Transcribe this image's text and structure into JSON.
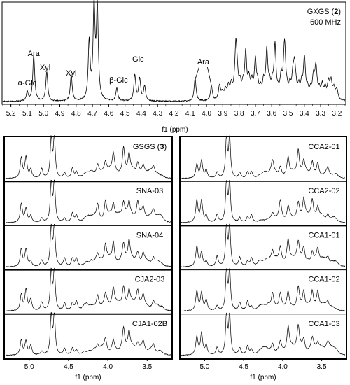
{
  "chart_data": [
    {
      "type": "line",
      "id": "main",
      "x_axis_label": "f1 (ppm)",
      "xlim": [
        5.25,
        3.15
      ],
      "x_reversed": true,
      "x_ticks": [
        "5.2",
        "5.1",
        "5.0",
        "4.9",
        "4.8",
        "4.7",
        "4.6",
        "4.5",
        "4.4",
        "4.3",
        "4.2",
        "4.1",
        "4.0",
        "3.9",
        "3.8",
        "3.7",
        "3.6",
        "3.5",
        "3.4",
        "3.3",
        "3.2"
      ],
      "sample_label_text": "GXGS (",
      "sample_label_bold": "2",
      "sample_label_close": ")",
      "field_label": "600 MHz",
      "peak_labels": [
        {
          "text": "α-Glc",
          "ppm": 5.1
        },
        {
          "text": "Ara",
          "ppm": 5.06
        },
        {
          "text": "Xyl",
          "ppm": 4.99
        },
        {
          "text": "Xyl",
          "ppm": 4.83
        },
        {
          "text": "β-Glc",
          "ppm": 4.54
        },
        {
          "text": "Glc",
          "ppm": 4.42
        },
        {
          "text": "Ara",
          "ppm": 4.02
        }
      ],
      "peaks": [
        {
          "ppm": 5.1,
          "h": 0.1
        },
        {
          "ppm": 5.06,
          "h": 0.5
        },
        {
          "ppm": 4.98,
          "h": 0.32
        },
        {
          "ppm": 4.83,
          "h": 0.28
        },
        {
          "ppm": 4.72,
          "h": 0.62
        },
        {
          "ppm": 4.69,
          "h": 1.0
        },
        {
          "ppm": 4.67,
          "h": 0.98
        },
        {
          "ppm": 4.55,
          "h": 0.14
        },
        {
          "ppm": 4.44,
          "h": 0.28
        },
        {
          "ppm": 4.41,
          "h": 0.24
        },
        {
          "ppm": 4.38,
          "h": 0.16
        },
        {
          "ppm": 4.07,
          "h": 0.25
        },
        {
          "ppm": 3.97,
          "h": 0.16
        },
        {
          "ppm": 3.82,
          "h": 0.5
        },
        {
          "ppm": 3.76,
          "h": 0.38
        },
        {
          "ppm": 3.7,
          "h": 0.34
        },
        {
          "ppm": 3.63,
          "h": 0.42
        },
        {
          "ppm": 3.58,
          "h": 0.48
        },
        {
          "ppm": 3.52,
          "h": 0.4
        },
        {
          "ppm": 3.46,
          "h": 0.3
        },
        {
          "ppm": 3.4,
          "h": 0.26
        },
        {
          "ppm": 3.33,
          "h": 0.22
        },
        {
          "ppm": 3.25,
          "h": 0.1
        }
      ]
    },
    {
      "type": "line",
      "id": "left-stack",
      "x_axis_label": "f1 (ppm)",
      "xlim": [
        5.3,
        3.2
      ],
      "x_ticks": [
        "5.0",
        "4.5",
        "4.0",
        "3.5"
      ],
      "panels": [
        {
          "name_text": "GSGS (",
          "name_bold": "3",
          "name_close": ")",
          "variant": 1
        },
        {
          "name_text": "SNA-03",
          "name_bold": "",
          "name_close": "",
          "variant": 2
        },
        {
          "name_text": "SNA-04",
          "name_bold": "",
          "name_close": "",
          "variant": 3
        },
        {
          "name_text": "CJA2-03",
          "name_bold": "",
          "name_close": "",
          "variant": 4
        },
        {
          "name_text": "CJA1-02B",
          "name_bold": "",
          "name_close": "",
          "variant": 5
        }
      ]
    },
    {
      "type": "line",
      "id": "right-stack",
      "x_axis_label": "f1 (ppm)",
      "xlim": [
        5.3,
        3.2
      ],
      "x_ticks": [
        "5.0",
        "4.5",
        "4.0",
        "3.5"
      ],
      "panels": [
        {
          "name_text": "CCA2-01",
          "name_bold": "",
          "name_close": "",
          "variant": 6
        },
        {
          "name_text": "CCA2-02",
          "name_bold": "",
          "name_close": "",
          "variant": 7
        },
        {
          "name_text": "CCA1-01",
          "name_bold": "",
          "name_close": "",
          "variant": 8
        },
        {
          "name_text": "CCA1-02",
          "name_bold": "",
          "name_close": "",
          "variant": 9
        },
        {
          "name_text": "CCA1-03",
          "name_bold": "",
          "name_close": "",
          "variant": 10
        }
      ]
    }
  ]
}
